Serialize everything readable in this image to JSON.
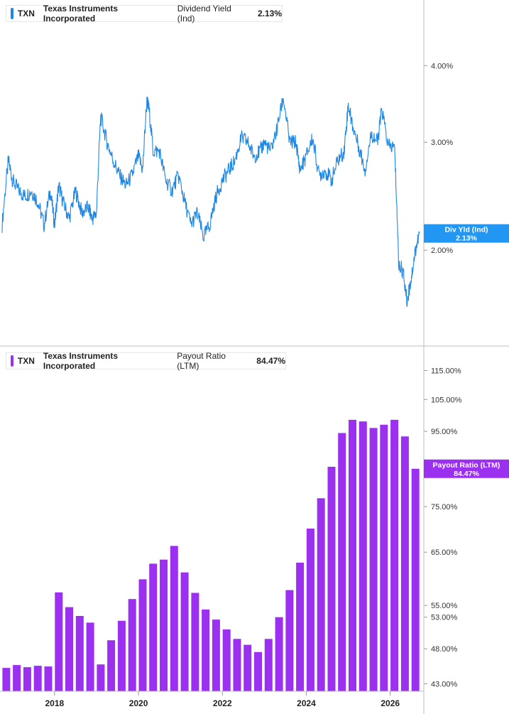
{
  "panels": {
    "top": {
      "ticker": "TXN",
      "company": "Texas Instruments Incorporated",
      "metric": "Dividend Yield (Ind)",
      "value": "2.13%",
      "badge_label": "Div Yld (Ind)",
      "badge_value": "2.13%",
      "color": "#1e88e5"
    },
    "bottom": {
      "ticker": "TXN",
      "company": "Texas Instruments Incorporated",
      "metric": "Payout Ratio (LTM)",
      "value": "84.47%",
      "badge_label": "Payout Ratio (LTM)",
      "badge_value": "84.47%",
      "color": "#9b30f0"
    }
  },
  "chart_data": [
    {
      "type": "line",
      "series": [
        {
          "name": "Dividend Yield (Ind)",
          "x": [
            2016.75,
            2016.9,
            2017.0,
            2017.15,
            2017.3,
            2017.45,
            2017.6,
            2017.75,
            2017.9,
            2018.0,
            2018.1,
            2018.2,
            2018.35,
            2018.5,
            2018.65,
            2018.8,
            2018.9,
            2019.0,
            2019.1,
            2019.25,
            2019.4,
            2019.55,
            2019.7,
            2019.85,
            2020.0,
            2020.1,
            2020.2,
            2020.25,
            2020.35,
            2020.5,
            2020.65,
            2020.8,
            2020.95,
            2021.1,
            2021.25,
            2021.4,
            2021.55,
            2021.7,
            2021.85,
            2022.0,
            2022.15,
            2022.3,
            2022.45,
            2022.6,
            2022.75,
            2022.9,
            2023.0,
            2023.15,
            2023.3,
            2023.45,
            2023.6,
            2023.75,
            2023.85,
            2024.0,
            2024.15,
            2024.3,
            2024.45,
            2024.6,
            2024.75,
            2024.9,
            2025.0,
            2025.1,
            2025.25,
            2025.4,
            2025.55,
            2025.7,
            2025.8,
            2025.95,
            2026.1,
            2026.2,
            2026.3,
            2026.4,
            2026.5,
            2026.6,
            2026.7
          ],
          "y": [
            2.2,
            2.8,
            2.6,
            2.5,
            2.45,
            2.5,
            2.4,
            2.2,
            2.5,
            2.2,
            2.55,
            2.4,
            2.25,
            2.5,
            2.3,
            2.35,
            2.25,
            2.3,
            3.3,
            3.0,
            2.8,
            2.65,
            2.55,
            2.65,
            2.85,
            2.7,
            3.5,
            3.4,
            2.9,
            2.9,
            2.6,
            2.5,
            2.65,
            2.4,
            2.2,
            2.3,
            2.1,
            2.2,
            2.45,
            2.6,
            2.7,
            2.8,
            3.05,
            3.0,
            2.85,
            2.9,
            3.0,
            2.9,
            3.15,
            3.55,
            3.0,
            3.0,
            2.7,
            2.85,
            3.05,
            2.65,
            2.7,
            2.6,
            2.8,
            2.9,
            3.45,
            3.2,
            2.95,
            2.7,
            3.1,
            3.0,
            3.4,
            2.95,
            2.95,
            1.9,
            1.85,
            1.65,
            1.8,
            2.0,
            2.13
          ]
        }
      ],
      "ylim": [
        1.5,
        4.6
      ],
      "y_scale": "log",
      "yticks": [
        "4.00%",
        "3.00%",
        "2.00%"
      ],
      "ytick_values": [
        4.0,
        3.0,
        2.0
      ],
      "xlim": [
        2016.7,
        2026.8
      ],
      "grid": false
    },
    {
      "type": "bar",
      "series": [
        {
          "name": "Payout Ratio (LTM)",
          "x": [
            2016.85,
            2017.1,
            2017.35,
            2017.6,
            2017.85,
            2018.1,
            2018.35,
            2018.6,
            2018.85,
            2019.1,
            2019.35,
            2019.6,
            2019.85,
            2020.1,
            2020.35,
            2020.6,
            2020.85,
            2021.1,
            2021.35,
            2021.6,
            2021.85,
            2022.1,
            2022.35,
            2022.6,
            2022.85,
            2023.1,
            2023.35,
            2023.6,
            2023.85,
            2024.1,
            2024.35,
            2024.6,
            2024.85,
            2025.1,
            2025.35,
            2025.6,
            2025.85,
            2026.1,
            2026.35,
            2026.6
          ],
          "values": [
            45.2,
            45.6,
            45.3,
            45.5,
            45.4,
            57.3,
            54.7,
            53.2,
            52.1,
            45.7,
            49.3,
            52.4,
            56.1,
            59.7,
            62.7,
            63.5,
            66.3,
            61.0,
            57.2,
            54.3,
            52.6,
            51.0,
            49.5,
            48.6,
            47.5,
            49.5,
            53.0,
            57.7,
            62.9,
            70.0,
            77.0,
            85.0,
            94.5,
            98.5,
            98.0,
            96.0,
            97.0,
            98.5,
            93.5,
            84.47
          ]
        }
      ],
      "ylim": [
        42.0,
        122.0
      ],
      "y_scale": "log",
      "yticks": [
        "115.00%",
        "105.00%",
        "95.00%",
        "75.00%",
        "65.00%",
        "55.00%",
        "53.00%",
        "48.00%",
        "43.00%"
      ],
      "ytick_values": [
        115,
        105,
        95,
        75,
        65,
        55,
        53,
        48,
        43
      ],
      "xticks": [
        "2018",
        "2020",
        "2022",
        "2024",
        "2026"
      ],
      "xtick_values": [
        2018,
        2020,
        2022,
        2024,
        2026
      ],
      "xlim": [
        2016.7,
        2026.8
      ],
      "grid": false
    }
  ]
}
